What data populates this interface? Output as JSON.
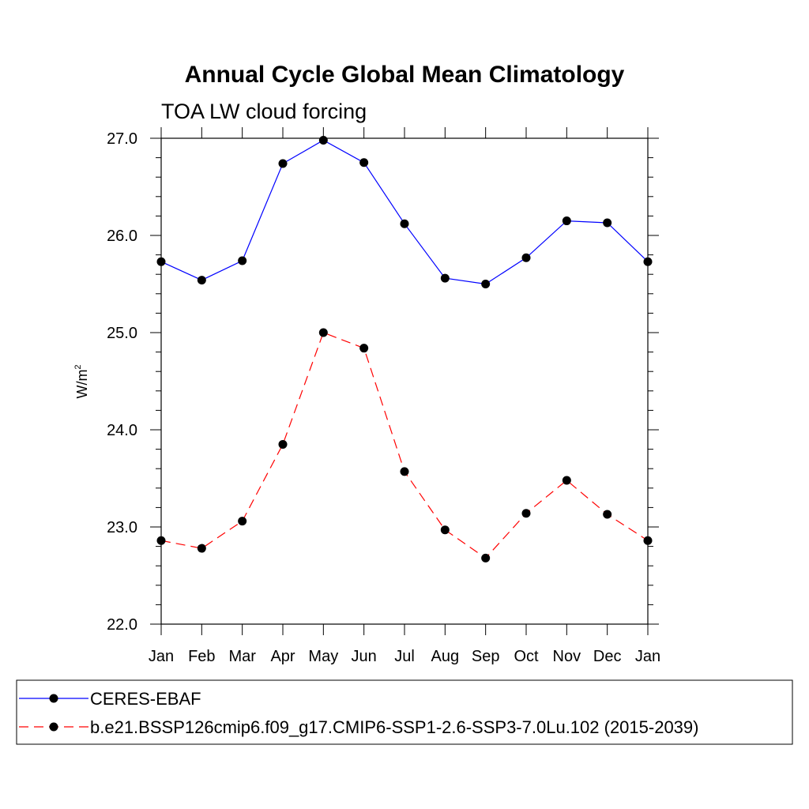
{
  "chart_data": {
    "type": "line",
    "title": "Annual Cycle Global Mean Climatology",
    "subtitle": "TOA LW cloud forcing",
    "ylabel": "W/m",
    "ylabel_sup": "2",
    "xlabel": "",
    "categories": [
      "Jan",
      "Feb",
      "Mar",
      "Apr",
      "May",
      "Jun",
      "Jul",
      "Aug",
      "Sep",
      "Oct",
      "Nov",
      "Dec",
      "Jan"
    ],
    "ylim": [
      22.0,
      27.0
    ],
    "yticks": [
      "22.0",
      "23.0",
      "24.0",
      "25.0",
      "26.0",
      "27.0"
    ],
    "grid": false,
    "legend_position": "bottom",
    "series": [
      {
        "name": "CERES-EBAF",
        "color": "#0000ff",
        "dash": "solid",
        "marker": "filled-circle",
        "values": [
          25.73,
          25.54,
          25.74,
          26.74,
          26.98,
          26.75,
          26.12,
          25.56,
          25.5,
          25.77,
          26.15,
          26.13,
          25.73
        ]
      },
      {
        "name": "b.e21.BSSP126cmip6.f09_g17.CMIP6-SSP1-2.6-SSP3-7.0Lu.102 (2015-2039)",
        "color": "#ff0000",
        "dash": "dashed",
        "marker": "filled-circle",
        "values": [
          22.86,
          22.78,
          23.06,
          23.85,
          25.0,
          24.84,
          23.57,
          22.97,
          22.68,
          23.14,
          23.48,
          23.13,
          22.86
        ]
      }
    ]
  }
}
